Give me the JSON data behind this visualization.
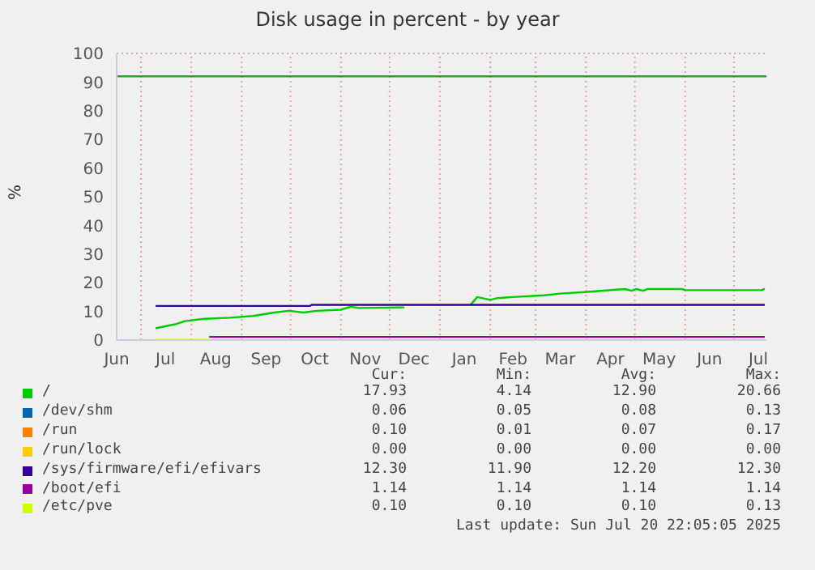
{
  "chart_data": {
    "type": "line",
    "title": "Disk usage in percent - by year",
    "ylabel": "%",
    "xlim": [
      "2024-06-16",
      "2025-07-21"
    ],
    "xticks": [
      {
        "value": "2024-06-16",
        "label": "Jun"
      },
      {
        "value": "2024-07-01",
        "label": null
      },
      {
        "value": "2024-07-16",
        "label": "Jul"
      },
      {
        "value": "2024-08-01",
        "label": null
      },
      {
        "value": "2024-08-16",
        "label": "Aug"
      },
      {
        "value": "2024-09-01",
        "label": null
      },
      {
        "value": "2024-09-16",
        "label": "Sep"
      },
      {
        "value": "2024-10-01",
        "label": null
      },
      {
        "value": "2024-10-16",
        "label": "Oct"
      },
      {
        "value": "2024-11-01",
        "label": null
      },
      {
        "value": "2024-11-16",
        "label": "Nov"
      },
      {
        "value": "2024-12-01",
        "label": null
      },
      {
        "value": "2024-12-16",
        "label": "Dec"
      },
      {
        "value": "2025-01-01",
        "label": null
      },
      {
        "value": "2025-01-16",
        "label": "Jan"
      },
      {
        "value": "2025-02-01",
        "label": null
      },
      {
        "value": "2025-02-15",
        "label": "Feb"
      },
      {
        "value": "2025-03-01",
        "label": null
      },
      {
        "value": "2025-03-16",
        "label": "Mar"
      },
      {
        "value": "2025-04-01",
        "label": null
      },
      {
        "value": "2025-04-16",
        "label": "Apr"
      },
      {
        "value": "2025-05-01",
        "label": null
      },
      {
        "value": "2025-05-16",
        "label": "May"
      },
      {
        "value": "2025-06-01",
        "label": null
      },
      {
        "value": "2025-06-16",
        "label": "Jun"
      },
      {
        "value": "2025-07-01",
        "label": null
      },
      {
        "value": "2025-07-16",
        "label": "Jul"
      }
    ],
    "ylim": [
      0,
      100
    ],
    "yticks": [
      0,
      10,
      20,
      30,
      40,
      50,
      60,
      70,
      80,
      90,
      100
    ],
    "grid": true,
    "legend": "bottom",
    "ref_lines": [
      {
        "axis": "y",
        "value": 92,
        "color": "#22aa22"
      }
    ],
    "series": [
      {
        "name": "/",
        "color": "#00cc00",
        "x": [
          "2024-07-10",
          "2024-07-14",
          "2024-07-22",
          "2024-07-28",
          "2024-08-09",
          "2024-08-25",
          "2024-09-08",
          "2024-09-21",
          "2024-09-30",
          "2024-10-09",
          "2024-10-17",
          "2024-11-01",
          "2024-11-07",
          "2024-11-12",
          "2024-12-10",
          "2024-12-11",
          "2025-01-19",
          "2025-01-20",
          "2025-01-24",
          "2025-02-01",
          "2025-02-05",
          "2025-02-15",
          "2025-03-06",
          "2025-03-16",
          "2025-04-02",
          "2025-04-25",
          "2025-04-29",
          "2025-05-02",
          "2025-05-06",
          "2025-05-09",
          "2025-05-12",
          "2025-05-30",
          "2025-06-01",
          "2025-07-18",
          "2025-07-20"
        ],
        "values": [
          4.1,
          4.6,
          5.5,
          6.6,
          7.4,
          7.8,
          8.4,
          9.6,
          10.2,
          9.6,
          10.2,
          10.6,
          11.6,
          11.2,
          11.4,
          null,
          null,
          12.4,
          15.0,
          14.0,
          14.6,
          15.0,
          15.6,
          16.2,
          16.8,
          17.8,
          17.2,
          17.8,
          17.2,
          17.8,
          17.8,
          17.8,
          17.4,
          17.4,
          17.9
        ]
      },
      {
        "name": "/dev/shm",
        "color": "#0066b3"
      },
      {
        "name": "/run",
        "color": "#ff8000"
      },
      {
        "name": "/run/lock",
        "color": "#ffcc00"
      },
      {
        "name": "/sys/firmware/efi/efivars",
        "color": "#330099",
        "x": [
          "2024-07-10",
          "2024-10-13",
          "2024-10-14",
          "2025-07-20"
        ],
        "values": [
          11.9,
          11.9,
          12.3,
          12.3
        ]
      },
      {
        "name": "/boot/efi",
        "color": "#990099",
        "x": [
          "2024-08-12",
          "2025-07-20"
        ],
        "values": [
          1.1,
          1.1
        ]
      },
      {
        "name": "/etc/pve",
        "color": "#ccff00",
        "x": [
          "2024-07-10",
          "2024-08-12"
        ],
        "values": [
          0.1,
          0.1
        ]
      }
    ],
    "annotations": [
      "Cur:",
      "Min:",
      "Avg:",
      "Max:",
      "17.93",
      "4.14",
      "12.90",
      "20.66",
      "0.06",
      "0.05",
      "0.08",
      "0.13",
      "0.10",
      "0.01",
      "0.07",
      "0.17",
      "0.00",
      "0.00",
      "0.00",
      "0.00",
      "12.30",
      "11.90",
      "12.20",
      "12.30",
      "1.14",
      "1.14",
      "1.14",
      "1.14",
      "0.10",
      "0.10",
      "0.10",
      "0.13",
      "Last update: Sun Jul 20 22:05:05 2025"
    ]
  }
}
